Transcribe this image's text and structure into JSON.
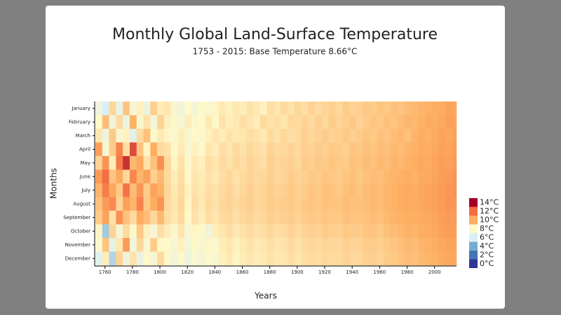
{
  "chart_data": {
    "type": "heatmap",
    "title": "Monthly Global Land-Surface Temperature",
    "subtitle": "1753 - 2015: Base Temperature 8.66°C",
    "x_label": "Years",
    "y_label": "Months",
    "x": [
      1753,
      1758,
      1763,
      1768,
      1773,
      1778,
      1783,
      1788,
      1793,
      1798,
      1803,
      1808,
      1813,
      1818,
      1823,
      1828,
      1833,
      1838,
      1843,
      1848,
      1853,
      1858,
      1863,
      1868,
      1873,
      1878,
      1883,
      1888,
      1893,
      1898,
      1903,
      1908,
      1913,
      1918,
      1923,
      1928,
      1933,
      1938,
      1943,
      1948,
      1953,
      1958,
      1963,
      1968,
      1973,
      1978,
      1983,
      1988,
      1993,
      1998,
      2003,
      2008,
      2013
    ],
    "xlim": [
      1753,
      2016
    ],
    "xticks": [
      1760,
      1780,
      1800,
      1820,
      1840,
      1860,
      1880,
      1900,
      1920,
      1940,
      1960,
      1980,
      2000
    ],
    "series": [
      {
        "name": "January",
        "values": [
          7.1,
          6.0,
          8.9,
          6.8,
          9.4,
          7.5,
          8.2,
          7.0,
          9.1,
          8.3,
          8.5,
          7.6,
          7.2,
          8.0,
          7.4,
          7.9,
          7.7,
          8.1,
          8.4,
          8.2,
          8.5,
          8.3,
          8.6,
          8.4,
          8.2,
          8.7,
          8.5,
          8.8,
          8.6,
          8.9,
          8.7,
          9.0,
          8.8,
          9.0,
          9.1,
          8.9,
          9.2,
          9.0,
          9.1,
          9.3,
          9.2,
          9.4,
          9.3,
          9.5,
          9.4,
          9.6,
          9.7,
          9.8,
          9.9,
          10.0,
          10.1,
          10.3,
          10.2
        ]
      },
      {
        "name": "February",
        "values": [
          8.0,
          9.6,
          7.2,
          8.8,
          6.9,
          9.9,
          7.8,
          8.6,
          7.4,
          9.0,
          8.2,
          7.9,
          7.5,
          8.3,
          7.8,
          8.0,
          8.4,
          7.9,
          8.6,
          8.3,
          8.4,
          8.7,
          8.5,
          8.3,
          8.8,
          8.6,
          8.7,
          8.5,
          8.9,
          8.8,
          9.0,
          8.8,
          9.1,
          8.9,
          9.2,
          9.0,
          9.1,
          9.3,
          9.0,
          9.2,
          9.4,
          9.3,
          9.5,
          9.4,
          9.6,
          9.8,
          9.7,
          9.9,
          10.1,
          10.0,
          10.2,
          10.4,
          10.3
        ]
      },
      {
        "name": "March",
        "values": [
          8.5,
          7.0,
          9.3,
          7.6,
          8.2,
          6.5,
          8.8,
          9.5,
          7.9,
          8.4,
          8.1,
          7.7,
          8.3,
          7.6,
          8.0,
          7.8,
          8.2,
          8.5,
          8.3,
          8.6,
          8.4,
          8.5,
          8.7,
          8.6,
          8.4,
          8.8,
          8.6,
          8.9,
          8.7,
          8.8,
          9.1,
          8.9,
          9.0,
          9.2,
          9.0,
          9.1,
          9.3,
          9.1,
          9.2,
          9.4,
          9.3,
          9.5,
          9.4,
          9.6,
          9.7,
          9.5,
          9.8,
          10.0,
          9.9,
          10.1,
          10.3,
          10.2,
          10.4
        ]
      },
      {
        "name": "April",
        "values": [
          10.5,
          7.6,
          9.2,
          11.3,
          8.7,
          12.6,
          9.4,
          8.1,
          10.0,
          8.8,
          8.6,
          7.9,
          8.4,
          7.7,
          8.2,
          8.0,
          8.5,
          8.3,
          8.7,
          8.5,
          8.8,
          8.6,
          8.9,
          8.7,
          8.6,
          9.0,
          8.8,
          8.9,
          9.0,
          8.8,
          9.1,
          9.0,
          9.2,
          9.1,
          9.3,
          9.2,
          9.1,
          9.4,
          9.3,
          9.5,
          9.4,
          9.6,
          9.5,
          9.7,
          9.6,
          9.8,
          9.9,
          10.1,
          10.0,
          10.2,
          10.4,
          10.3,
          10.5
        ]
      },
      {
        "name": "May",
        "values": [
          9.0,
          10.8,
          8.3,
          11.6,
          13.1,
          9.7,
          10.2,
          8.6,
          9.5,
          11.0,
          8.9,
          8.1,
          8.6,
          7.8,
          8.4,
          8.2,
          8.7,
          8.5,
          8.8,
          8.6,
          8.9,
          8.7,
          9.0,
          8.8,
          8.7,
          9.1,
          8.9,
          9.0,
          9.1,
          8.9,
          9.2,
          9.1,
          9.3,
          9.2,
          9.4,
          9.3,
          9.2,
          9.5,
          9.4,
          9.6,
          9.5,
          9.7,
          9.6,
          9.8,
          9.7,
          9.9,
          10.0,
          10.2,
          10.1,
          10.3,
          10.5,
          10.4,
          10.6
        ]
      },
      {
        "name": "June",
        "values": [
          10.6,
          12.0,
          9.4,
          10.1,
          8.9,
          11.2,
          9.8,
          10.4,
          9.1,
          9.7,
          8.8,
          8.3,
          8.7,
          8.0,
          8.5,
          8.3,
          8.6,
          8.4,
          8.7,
          8.9,
          8.6,
          8.8,
          9.0,
          8.8,
          8.9,
          9.1,
          8.9,
          9.0,
          9.2,
          9.0,
          9.1,
          9.3,
          9.2,
          9.4,
          9.3,
          9.2,
          9.4,
          9.5,
          9.3,
          9.5,
          9.6,
          9.5,
          9.7,
          9.8,
          9.9,
          10.0,
          9.9,
          10.1,
          10.2,
          10.3,
          10.5,
          10.6,
          10.7
        ]
      },
      {
        "name": "July",
        "values": [
          9.8,
          11.5,
          10.2,
          9.3,
          11.8,
          9.6,
          10.7,
          9.2,
          10.3,
          9.9,
          8.9,
          8.4,
          8.8,
          8.2,
          8.6,
          8.4,
          8.7,
          8.6,
          8.8,
          9.0,
          8.7,
          8.9,
          9.1,
          8.9,
          9.0,
          9.2,
          9.0,
          9.1,
          9.3,
          9.1,
          9.2,
          9.4,
          9.3,
          9.5,
          9.4,
          9.3,
          9.5,
          9.6,
          9.4,
          9.6,
          9.7,
          9.6,
          9.8,
          9.9,
          10.0,
          10.1,
          10.0,
          10.2,
          10.3,
          10.4,
          10.6,
          10.7,
          10.8
        ]
      },
      {
        "name": "August",
        "values": [
          9.5,
          10.6,
          11.1,
          9.0,
          10.4,
          9.8,
          11.4,
          9.3,
          10.0,
          10.8,
          8.8,
          8.5,
          8.9,
          8.1,
          8.7,
          8.4,
          8.8,
          8.6,
          8.9,
          9.0,
          8.8,
          9.0,
          9.1,
          8.9,
          9.0,
          9.2,
          9.1,
          9.2,
          9.3,
          9.1,
          9.3,
          9.4,
          9.3,
          9.5,
          9.4,
          9.4,
          9.6,
          9.5,
          9.5,
          9.6,
          9.7,
          9.6,
          9.8,
          9.9,
          10.0,
          10.1,
          10.1,
          10.2,
          10.3,
          10.4,
          10.6,
          10.8,
          10.7
        ]
      },
      {
        "name": "September",
        "values": [
          9.2,
          10.3,
          8.6,
          10.9,
          9.5,
          8.8,
          10.1,
          9.6,
          8.9,
          9.7,
          8.7,
          8.4,
          8.8,
          8.0,
          8.6,
          8.3,
          8.7,
          8.5,
          8.8,
          8.9,
          8.7,
          8.9,
          9.0,
          8.8,
          8.9,
          9.1,
          9.0,
          9.1,
          9.2,
          9.0,
          9.2,
          9.3,
          9.2,
          9.4,
          9.3,
          9.3,
          9.5,
          9.4,
          9.4,
          9.5,
          9.6,
          9.5,
          9.7,
          9.8,
          9.9,
          10.0,
          10.0,
          10.1,
          10.2,
          10.3,
          10.5,
          10.6,
          10.6
        ]
      },
      {
        "name": "October",
        "values": [
          8.1,
          4.9,
          9.0,
          7.4,
          8.8,
          7.9,
          9.3,
          8.2,
          7.5,
          8.7,
          8.3,
          7.8,
          8.5,
          7.5,
          8.1,
          7.9,
          7.2,
          8.3,
          8.5,
          8.7,
          8.4,
          8.6,
          8.8,
          8.6,
          8.7,
          8.9,
          8.7,
          8.8,
          9.0,
          8.8,
          9.0,
          9.1,
          9.0,
          9.2,
          9.1,
          9.1,
          9.3,
          9.2,
          9.2,
          9.4,
          9.4,
          9.3,
          9.5,
          9.6,
          9.7,
          9.9,
          9.8,
          10.0,
          10.1,
          10.2,
          10.4,
          10.5,
          10.5
        ]
      },
      {
        "name": "November",
        "values": [
          7.8,
          9.4,
          6.7,
          8.5,
          10.6,
          7.3,
          8.9,
          7.6,
          9.2,
          8.0,
          8.0,
          7.5,
          8.2,
          7.3,
          7.9,
          7.6,
          8.1,
          7.8,
          8.3,
          8.5,
          8.2,
          8.4,
          8.6,
          8.4,
          8.5,
          8.7,
          8.5,
          8.6,
          8.8,
          8.6,
          8.8,
          8.9,
          8.8,
          9.0,
          8.9,
          8.9,
          9.1,
          9.0,
          9.0,
          9.2,
          9.2,
          9.1,
          9.3,
          9.4,
          9.5,
          9.7,
          9.6,
          9.8,
          9.9,
          10.0,
          10.2,
          10.3,
          10.3
        ]
      },
      {
        "name": "December",
        "values": [
          6.4,
          8.3,
          5.2,
          9.0,
          7.1,
          8.6,
          6.9,
          8.0,
          7.5,
          8.8,
          7.9,
          7.3,
          8.0,
          7.1,
          7.7,
          7.4,
          7.9,
          7.6,
          8.2,
          8.4,
          8.1,
          8.3,
          8.5,
          8.3,
          8.4,
          8.6,
          8.4,
          8.5,
          8.7,
          8.5,
          8.7,
          8.8,
          8.7,
          8.9,
          8.8,
          8.8,
          9.0,
          8.9,
          8.9,
          9.1,
          9.1,
          9.0,
          9.2,
          9.3,
          9.4,
          9.6,
          9.5,
          9.7,
          9.8,
          9.9,
          10.1,
          10.2,
          10.2
        ]
      }
    ],
    "color_scale": [
      {
        "value": 14,
        "label": "14°C",
        "color": "#a50026"
      },
      {
        "value": 12,
        "label": "12°C",
        "color": "#f46d43"
      },
      {
        "value": 10,
        "label": "10°C",
        "color": "#fdae61"
      },
      {
        "value": 8,
        "label": "8°C",
        "color": "#fff8c8"
      },
      {
        "value": 6,
        "label": "6°C",
        "color": "#d9eff6"
      },
      {
        "value": 4,
        "label": "4°C",
        "color": "#74add1"
      },
      {
        "value": 2,
        "label": "2°C",
        "color": "#4575b4"
      },
      {
        "value": 0,
        "label": "0°C",
        "color": "#313695"
      }
    ]
  }
}
